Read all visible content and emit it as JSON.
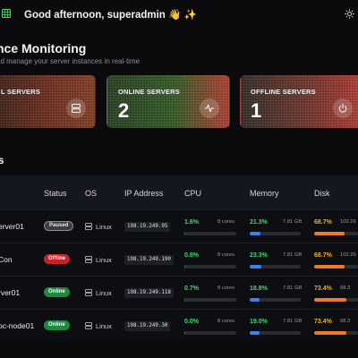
{
  "header": {
    "greeting": "Good afternoon, superadmin 👋 ✨"
  },
  "page": {
    "title": "nce Monitoring",
    "subtitle": "nd manage your server instances in real-time"
  },
  "stats": [
    {
      "label": "L SERVERS",
      "value": ""
    },
    {
      "label": "ONLINE SERVERS",
      "value": "2"
    },
    {
      "label": "OFFLINE SERVERS",
      "value": "1"
    }
  ],
  "section": {
    "title": "s"
  },
  "table": {
    "headers": {
      "status": "Status",
      "os": "OS",
      "ip": "IP Address",
      "cpu": "CPU",
      "memory": "Memory",
      "disk": "Disk"
    },
    "rows": [
      {
        "name": "erver01",
        "status": "Paused",
        "os": "Linux",
        "ip": "198.19.249.95",
        "cpu": "1.6%",
        "cores": "8 cores",
        "cpu_pct": 1.6,
        "mem": "21.3%",
        "mem_size": "7.81 GB",
        "mem_pct": 21.3,
        "disk": "68.7%",
        "disk_size": "102.26",
        "disk_pct": 68.7
      },
      {
        "name": "Con",
        "status": "Offline",
        "os": "Linux",
        "ip": "198.19.249.190",
        "cpu": "0.8%",
        "cores": "8 cores",
        "cpu_pct": 0.8,
        "mem": "23.3%",
        "mem_size": "7.81 GB",
        "mem_pct": 23.3,
        "disk": "68.7%",
        "disk_size": "102.26",
        "disk_pct": 68.7
      },
      {
        "name": "rver01",
        "status": "Online",
        "os": "Linux",
        "ip": "198.19.249.118",
        "cpu": "0.7%",
        "cores": "8 cores",
        "cpu_pct": 0.7,
        "mem": "18.8%",
        "mem_size": "7.81 GB",
        "mem_pct": 18.8,
        "disk": "73.4%",
        "disk_size": "98.3",
        "disk_pct": 73.4
      },
      {
        "name": "pc-node01",
        "status": "Online",
        "os": "Linux",
        "ip": "198.19.249.30",
        "cpu": "0.0%",
        "cores": "8 cores",
        "cpu_pct": 0.0,
        "mem": "19.0%",
        "mem_size": "7.81 GB",
        "mem_pct": 19.0,
        "disk": "73.4%",
        "disk_size": "98.3",
        "disk_pct": 73.4
      }
    ]
  },
  "colors": {
    "cpu_fill": "#1f7a3a",
    "mem_fill": "#3b82f6",
    "disk_fill": "#f07a2a",
    "paused": "#3b3d44",
    "offline": "#c5222b",
    "online": "#1a8a3c"
  },
  "icons": {
    "app": "grid-icon",
    "theme": "sun-icon",
    "total": "server-icon",
    "online": "activity-icon",
    "offline": "power-icon",
    "os": "server-icon"
  }
}
